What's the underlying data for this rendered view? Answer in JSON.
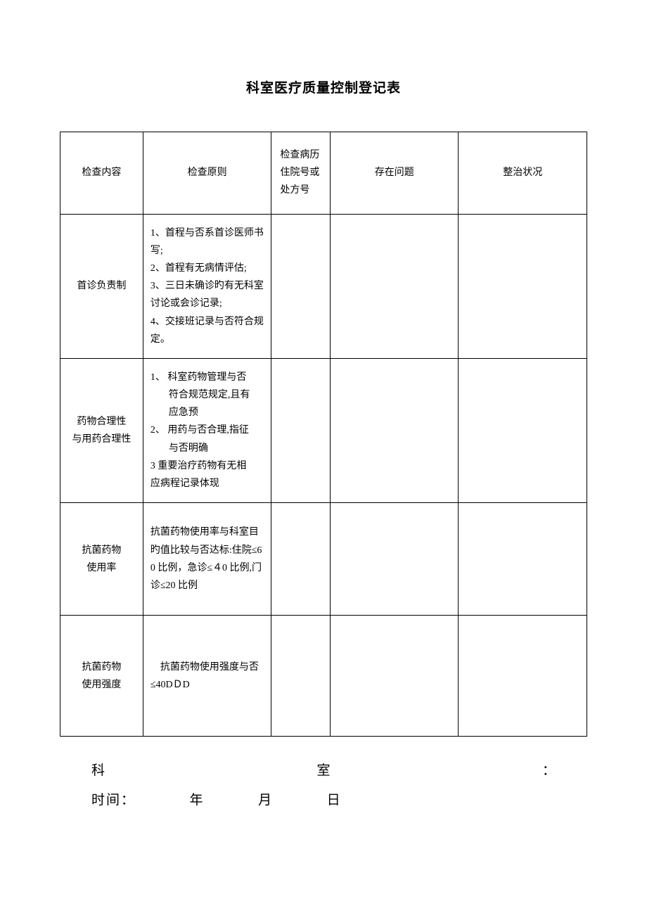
{
  "title": "科室医疗质量控制登记表",
  "table": {
    "headers": {
      "col1": "检查内容",
      "col2": "检查原则",
      "col3": "检查病历住院号或处方号",
      "col4": "存在问题",
      "col5": "整治状况"
    },
    "rows": [
      {
        "content": "首诊负责制",
        "criteria_lines": [
          "1、首程与否系首诊医师书写;",
          "2、首程有无病情评估;",
          "3、三日未确诊旳有无科室讨论或会诊记录;",
          "4、交接班记录与否符合规定。"
        ],
        "record_no": "",
        "issues": "",
        "rectification": ""
      },
      {
        "content_line1": "药物合理性",
        "content_line2": "与用药合理性",
        "criteria_lines": [
          "1、 科室药物管理与否",
          "符合规范规定,且有",
          "应急预",
          "2、 用药与否合理,指征",
          "与否明确",
          "3    重要治疗药物有无相",
          "应病程记录体现"
        ],
        "record_no": "",
        "issues": "",
        "rectification": ""
      },
      {
        "content_line1": "抗菌药物",
        "content_line2": "使用率",
        "criteria_text": "抗菌药物使用率与科室目旳值比较与否达标:住院≤6 0 比例，急诊≤４0 比例,门诊≤20 比例",
        "record_no": "",
        "issues": "",
        "rectification": ""
      },
      {
        "content_line1": "抗菌药物",
        "content_line2": "使用强度",
        "criteria_text": "　抗菌药物使用强度与否≤40DＤD",
        "record_no": "",
        "issues": "",
        "rectification": ""
      }
    ]
  },
  "footer": {
    "dept_label_char1": "科",
    "dept_label_char2": "室",
    "colon": "：",
    "time_label": "时间：",
    "year": "年",
    "month": "月",
    "day": "日"
  },
  "styling": {
    "background_color": "#ffffff",
    "border_color": "#000000",
    "text_color": "#000000",
    "title_fontsize": 19,
    "body_fontsize": 14,
    "footer_fontsize": 19
  }
}
